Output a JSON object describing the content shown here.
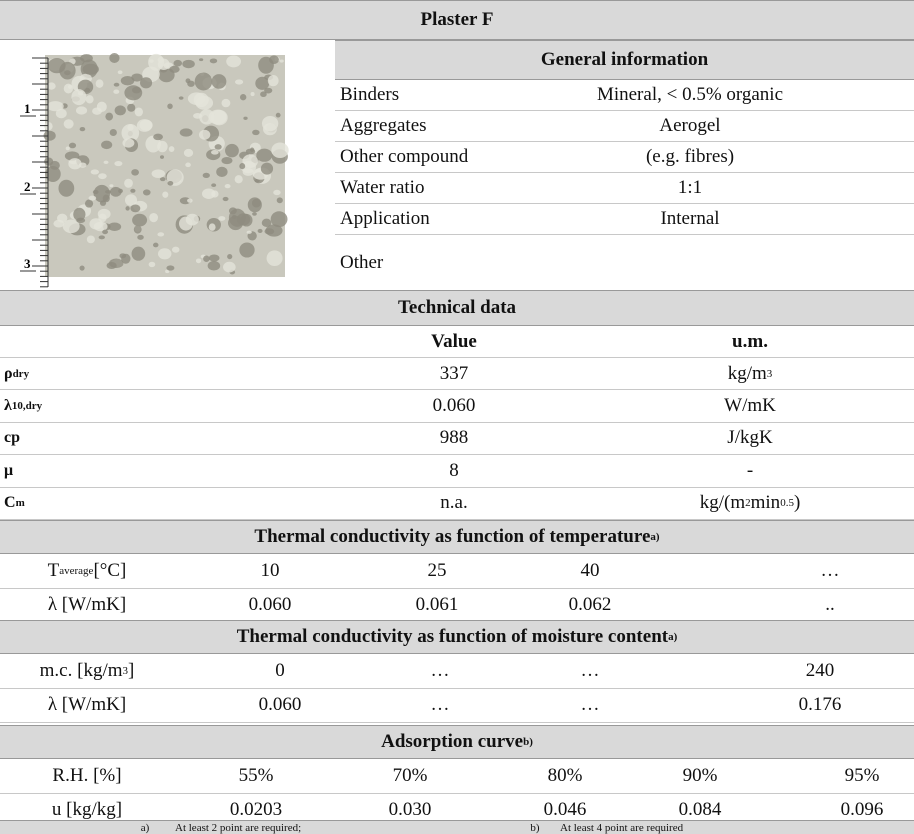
{
  "title": "Plaster F",
  "image": {
    "scale": [
      "1",
      "2",
      "3"
    ]
  },
  "general_information": {
    "title": "General information",
    "rows": [
      {
        "label": "Binders",
        "value": "Mineral, < 0.5% organic"
      },
      {
        "label": "Aggregates",
        "value": "Aerogel"
      },
      {
        "label": "Other compound",
        "value": "(e.g. fibres)"
      },
      {
        "label": "Water ratio",
        "value": "1:1"
      },
      {
        "label": "Application",
        "value": "Internal"
      },
      {
        "label": "Other"
      }
    ]
  },
  "technical_data": {
    "title": "Technical data",
    "columns": [
      "Value",
      "u.m."
    ],
    "rows": [
      {
        "symbol": [
          {
            "text": "ρ"
          },
          {
            "text": "dry",
            "sub": true
          }
        ],
        "value": "337",
        "unit": [
          {
            "text": "kg/m"
          },
          {
            "text": "3",
            "sup": true
          }
        ]
      },
      {
        "symbol": [
          {
            "text": "λ"
          },
          {
            "text": "10,dry",
            "sub": true
          }
        ],
        "value": "0.060",
        "unit": [
          {
            "text": "W/mK"
          }
        ]
      },
      {
        "symbol": [
          {
            "text": "cp"
          }
        ],
        "value": "988",
        "unit": [
          {
            "text": "J/kgK"
          }
        ]
      },
      {
        "symbol": [
          {
            "text": "μ"
          }
        ],
        "value": "8",
        "unit": [
          {
            "text": "-"
          }
        ]
      },
      {
        "symbol": [
          {
            "text": "C"
          },
          {
            "text": "m",
            "sub": true
          }
        ],
        "value": "n.a.",
        "unit": [
          {
            "text": "kg/(m"
          },
          {
            "text": "2",
            "sup": true
          },
          {
            "text": "min"
          },
          {
            "text": "0.5",
            "sup": true
          },
          {
            "text": ")"
          }
        ]
      }
    ]
  },
  "conductivity_temperature": {
    "title": [
      {
        "text": "Thermal conductivity as function of temperature "
      },
      {
        "text": "a)",
        "sup": true
      }
    ],
    "rows": [
      {
        "label": [
          {
            "text": "T"
          },
          {
            "text": "average",
            "sub": true
          },
          {
            "text": " [°C]"
          }
        ],
        "cells": [
          "10",
          "25",
          "40",
          "…"
        ]
      },
      {
        "label": [
          {
            "text": "λ [W/mK]"
          }
        ],
        "cells": [
          "0.060",
          "0.061",
          "0.062",
          ".."
        ]
      }
    ]
  },
  "conductivity_moisture": {
    "title": [
      {
        "text": "Thermal conductivity as function of moisture content "
      },
      {
        "text": "a)",
        "sup": true
      }
    ],
    "rows": [
      {
        "label": [
          {
            "text": "m.c. [kg/m"
          },
          {
            "text": "3",
            "sup": true
          },
          {
            "text": "]"
          }
        ],
        "cells": [
          "0",
          "…",
          "…",
          "240"
        ]
      },
      {
        "label": [
          {
            "text": "λ [W/mK]"
          }
        ],
        "cells": [
          "0.060",
          "…",
          "…",
          "0.176"
        ]
      }
    ]
  },
  "adsorption_curve": {
    "title": [
      {
        "text": "Adsorption curve "
      },
      {
        "text": "b)",
        "sup": true
      }
    ],
    "rows": [
      {
        "label": [
          {
            "text": "R.H. [%]"
          }
        ],
        "cells": [
          "55%",
          "70%",
          "80%",
          "90%",
          "95%"
        ]
      },
      {
        "label": [
          {
            "text": "u [kg/kg]"
          }
        ],
        "cells": [
          "0.0203",
          "0.030",
          "0.046",
          "0.084",
          "0.096"
        ]
      }
    ]
  },
  "footnotes": [
    {
      "mark": "a)",
      "text": "At least 2 point are required;"
    },
    {
      "mark": "b)",
      "text": "At least 4 point are required"
    }
  ]
}
